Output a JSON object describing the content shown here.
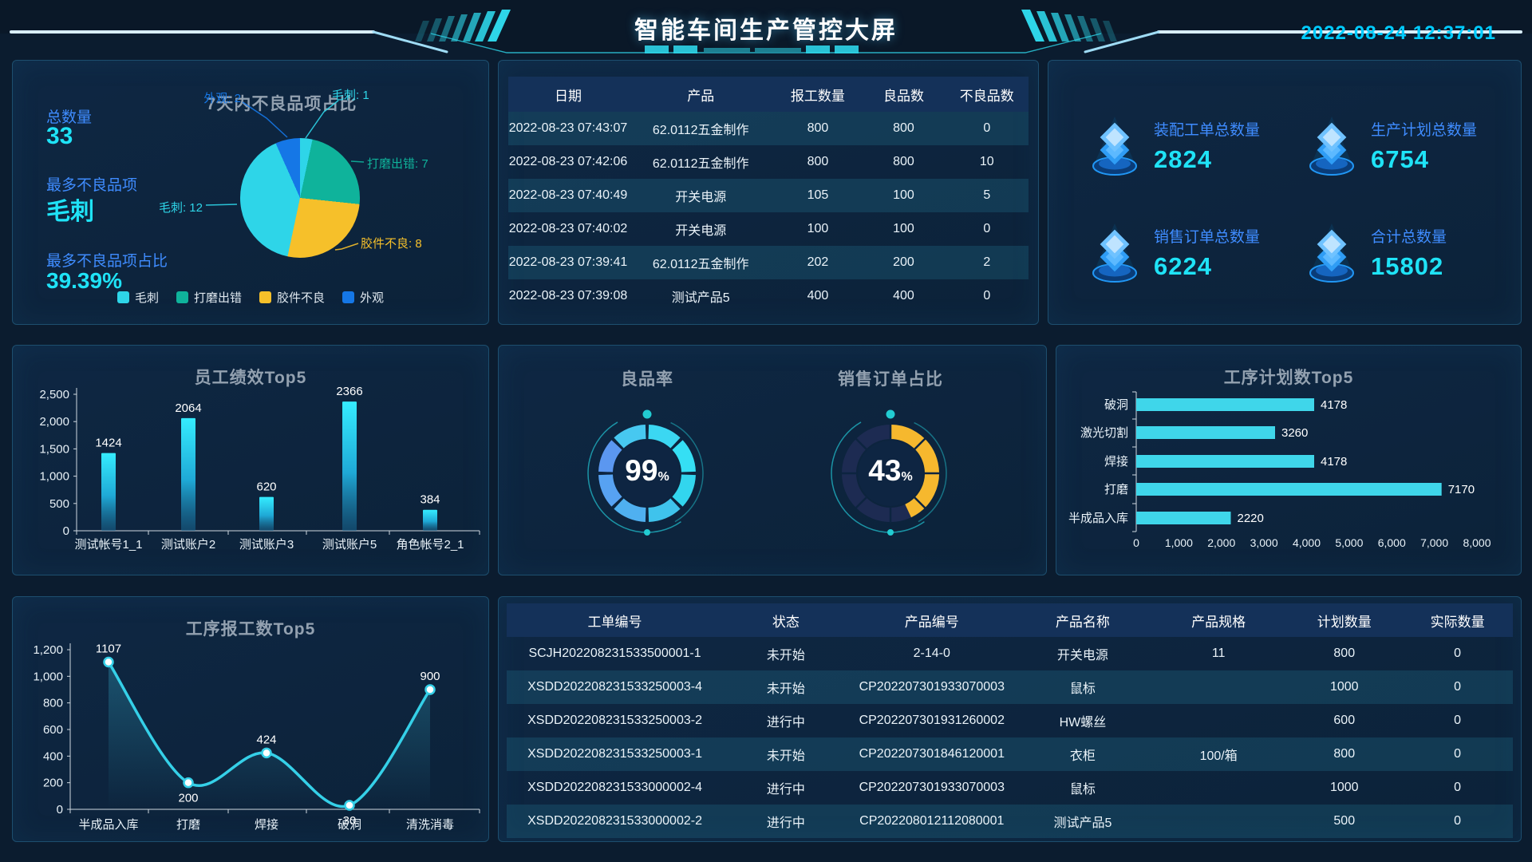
{
  "header": {
    "title": "智能车间生产管控大屏",
    "datetime": "2022-08-24 12:37:01"
  },
  "colors": {
    "accent_cyan": "#1fe3f7",
    "label_blue": "#3f8cff",
    "panel_border": "#1d4e6e",
    "bar_cyan": "#3fd6ea",
    "gauge_yellow": "#f6b82e",
    "gauge_dark_ring": "#1d2b52"
  },
  "defect_panel": {
    "stats": [
      {
        "label": "总数量",
        "value": "33"
      },
      {
        "label": "最多不良品项",
        "value": "毛刺"
      },
      {
        "label": "最多不良品项占比",
        "value": "39.39%"
      }
    ]
  },
  "report_table": {
    "columns": [
      "日期",
      "产品",
      "报工数量",
      "良品数",
      "不良品数"
    ],
    "rows": [
      [
        "2022-08-23 07:43:07",
        "62.0112五金制作",
        "800",
        "800",
        "0"
      ],
      [
        "2022-08-23 07:42:06",
        "62.0112五金制作",
        "800",
        "800",
        "10"
      ],
      [
        "2022-08-23 07:40:49",
        "开关电源",
        "105",
        "100",
        "5"
      ],
      [
        "2022-08-23 07:40:02",
        "开关电源",
        "100",
        "100",
        "0"
      ],
      [
        "2022-08-23 07:39:41",
        "62.0112五金制作",
        "202",
        "200",
        "2"
      ],
      [
        "2022-08-23 07:39:08",
        "测试产品5",
        "400",
        "400",
        "0"
      ]
    ]
  },
  "stat_cards": [
    {
      "label": "装配工单总数量",
      "value": "2824"
    },
    {
      "label": "生产计划总数量",
      "value": "6754"
    },
    {
      "label": "销售订单总数量",
      "value": "6224"
    },
    {
      "label": "合计总数量",
      "value": "15802"
    }
  ],
  "work_order_table": {
    "columns": [
      "工单编号",
      "状态",
      "产品编号",
      "产品名称",
      "产品规格",
      "计划数量",
      "实际数量"
    ],
    "rows": [
      [
        "SCJH202208231533500001-1",
        "未开始",
        "2-14-0",
        "开关电源",
        "11",
        "800",
        "0"
      ],
      [
        "XSDD202208231533250003-4",
        "未开始",
        "CP202207301933070003",
        "鼠标",
        "",
        "1000",
        "0"
      ],
      [
        "XSDD202208231533250003-2",
        "进行中",
        "CP202207301931260002",
        "HW螺丝",
        "",
        "600",
        "0"
      ],
      [
        "XSDD202208231533250003-1",
        "未开始",
        "CP202207301846120001",
        "衣柜",
        "100/箱",
        "800",
        "0"
      ],
      [
        "XSDD202208231533000002-4",
        "进行中",
        "CP202207301933070003",
        "鼠标",
        "",
        "1000",
        "0"
      ],
      [
        "XSDD202208231533000002-2",
        "进行中",
        "CP202208012112080001",
        "测试产品5",
        "",
        "500",
        "0"
      ]
    ]
  },
  "chart_data": [
    {
      "id": "defect_pie",
      "type": "pie",
      "title": "7天内不良品项占比",
      "slices": [
        {
          "name": "毛刺",
          "value": 1,
          "color": "#2ed5e8"
        },
        {
          "name": "打磨出错",
          "value": 7,
          "color": "#0fb39b"
        },
        {
          "name": "胶件不良",
          "value": 8,
          "color": "#f6c02a"
        },
        {
          "name": "毛刺",
          "value": 12,
          "color": "#2ed5e8"
        },
        {
          "name": "外观",
          "value": 2,
          "color": "#1577e6"
        }
      ],
      "legend": [
        "毛刺",
        "打磨出错",
        "胶件不良",
        "外观"
      ],
      "legend_colors": [
        "#2ed5e8",
        "#0fb39b",
        "#f6c02a",
        "#1577e6"
      ],
      "callouts": [
        "毛刺: 1",
        "打磨出错: 7",
        "胶件不良: 8",
        "毛刺: 12",
        "外观: 2"
      ]
    },
    {
      "id": "perf_bar",
      "type": "bar",
      "title": "员工绩效Top5",
      "categories": [
        "测试帐号1_1",
        "测试账户2",
        "测试账户3",
        "测试账户5",
        "角色帐号2_1"
      ],
      "values": [
        1424,
        2064,
        620,
        2366,
        384
      ],
      "ylim": [
        0,
        2500
      ],
      "ytick_step": 500,
      "legend_position": "none",
      "grid": false
    },
    {
      "id": "yield_gauge",
      "type": "gauge",
      "title": "良品率",
      "value": 99,
      "unit": "%"
    },
    {
      "id": "order_gauge",
      "type": "gauge",
      "title": "销售订单占比",
      "value": 43,
      "unit": "%"
    },
    {
      "id": "plan_hbar",
      "type": "hbar",
      "title": "工序计划数Top5",
      "categories": [
        "破洞",
        "激光切割",
        "焊接",
        "打磨",
        "半成品入库"
      ],
      "values": [
        4178,
        3260,
        4178,
        7170,
        2220
      ],
      "xlim": [
        0,
        8000
      ],
      "xtick_step": 1000,
      "grid": false
    },
    {
      "id": "report_line",
      "type": "line",
      "title": "工序报工数Top5",
      "categories": [
        "半成品入库",
        "打磨",
        "焊接",
        "破洞",
        "清洗消毒"
      ],
      "values": [
        1107,
        200,
        424,
        30,
        900
      ],
      "ylim": [
        0,
        1200
      ],
      "ytick_step": 200,
      "grid": false
    }
  ]
}
